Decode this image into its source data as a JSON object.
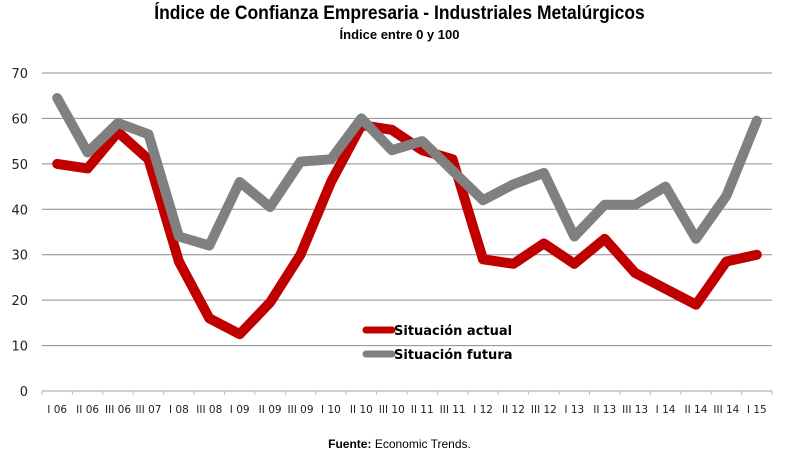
{
  "chart_data": {
    "type": "line",
    "title": "Índice de Confianza Empresaria - Industriales Metalúrgicos",
    "subtitle": "Índice entre 0 y 100",
    "xlabel": "",
    "ylabel": "",
    "ylim": [
      0,
      70
    ],
    "yticks": [
      0,
      10,
      20,
      30,
      40,
      50,
      60,
      70
    ],
    "grid": true,
    "legend_position": "bottom-center-inside",
    "categories": [
      "I 06",
      "II 06",
      "III 06",
      "III 07",
      "I 08",
      "III 08",
      "I 09",
      "II 09",
      "III 09",
      "I 10",
      "II 10",
      "III 10",
      "II 11",
      "III 11",
      "I 12",
      "II 12",
      "III 12",
      "I 13",
      "II 13",
      "III 13",
      "I 14",
      "II 14",
      "III 14",
      "I 15"
    ],
    "series": [
      {
        "name": "Situación actual",
        "color": "#c00000",
        "values": [
          50,
          49,
          57,
          51,
          28.5,
          16,
          12.5,
          19.5,
          30,
          46,
          58.5,
          57.5,
          53,
          51,
          29,
          28,
          32.5,
          28,
          33.5,
          26,
          22.5,
          19,
          28.5,
          30
        ]
      },
      {
        "name": "Situación futura",
        "color": "#808080",
        "values": [
          64.5,
          52.5,
          59,
          56.5,
          34,
          32,
          46,
          40.5,
          50.5,
          51,
          60,
          53,
          55,
          48.5,
          42,
          45.5,
          48,
          34,
          41,
          41,
          45,
          33.5,
          43,
          59.5
        ]
      }
    ],
    "source_label": "Fuente:",
    "source_text": "Economic Trends."
  }
}
